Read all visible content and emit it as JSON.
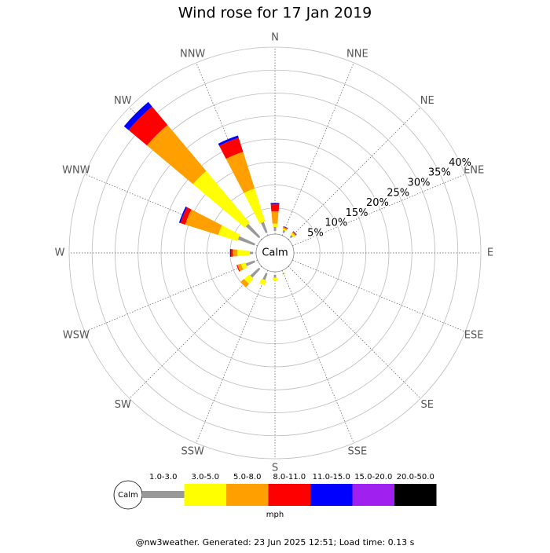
{
  "chart_data": {
    "type": "windrose",
    "title": "Wind rose for 17 Jan 2019",
    "directions": [
      "N",
      "NNE",
      "NE",
      "ENE",
      "E",
      "ESE",
      "SE",
      "SSE",
      "S",
      "SSW",
      "SW",
      "WSW",
      "W",
      "WNW",
      "NW",
      "NNW"
    ],
    "center_label": "Calm",
    "rlim": [
      0,
      40
    ],
    "rticks": [
      {
        "value": 5,
        "label": "5%"
      },
      {
        "value": 10,
        "label": "10%"
      },
      {
        "value": 15,
        "label": "15%"
      },
      {
        "value": 20,
        "label": "20%"
      },
      {
        "value": 25,
        "label": "25%"
      },
      {
        "value": 30,
        "label": "30%"
      },
      {
        "value": 35,
        "label": "35%"
      },
      {
        "value": 40,
        "label": "40%"
      }
    ],
    "series": [
      {
        "name": "1.0-3.0",
        "color": "#999999",
        "values": [
          0.9,
          0.5,
          0.5,
          0,
          0,
          0,
          0,
          0.2,
          0.6,
          1.5,
          2.5,
          2.0,
          0.7,
          3.8,
          3.8,
          2.4
        ]
      },
      {
        "name": "3.0-5.0",
        "color": "#ffff00",
        "values": [
          0.7,
          0.3,
          0.4,
          0,
          0,
          0,
          0,
          0.1,
          0.6,
          1.1,
          1.5,
          1.0,
          2.7,
          4.4,
          14.7,
          7.5
        ]
      },
      {
        "name": "5.0-8.0",
        "color": "#ffa000",
        "values": [
          2.7,
          0.3,
          0.3,
          0,
          0,
          0,
          0,
          0,
          0,
          0,
          1.0,
          0.8,
          1.0,
          7.5,
          13.1,
          8.4
        ]
      },
      {
        "name": "8.0-11.0",
        "color": "#ff0000",
        "values": [
          1.5,
          0.1,
          0.1,
          0,
          0,
          0,
          0,
          0,
          0,
          0,
          0,
          0.2,
          0.4,
          1.1,
          5.2,
          3.2
        ]
      },
      {
        "name": "11.0-15.0",
        "color": "#0000ff",
        "values": [
          0.3,
          0.1,
          0.1,
          0,
          0,
          0,
          0,
          0,
          0,
          0,
          0,
          0,
          0.2,
          0.3,
          1.3,
          0.5
        ]
      },
      {
        "name": "15.0-20.0",
        "color": "#a020f0",
        "values": [
          0,
          0,
          0,
          0,
          0,
          0,
          0,
          0,
          0,
          0,
          0,
          0,
          0,
          0,
          0,
          0
        ]
      },
      {
        "name": "20.0-50.0",
        "color": "#000000",
        "values": [
          0,
          0,
          0,
          0,
          0,
          0,
          0,
          0,
          0,
          0,
          0,
          0,
          0,
          0,
          0,
          0
        ]
      }
    ],
    "legend_unit": "mph",
    "footer": "@nw3weather. Generated: 23 Jun 2025 12:51; Load time: 0.13 s"
  }
}
